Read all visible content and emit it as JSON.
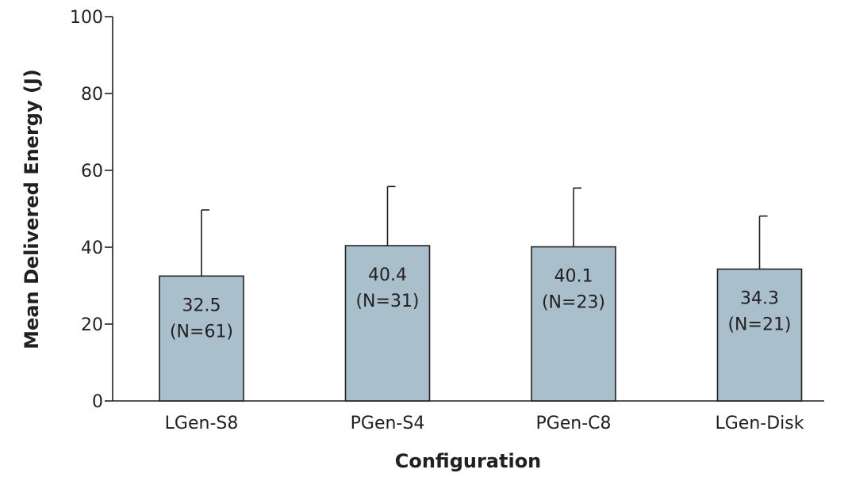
{
  "chart_data": {
    "type": "bar",
    "ylabel": "Mean Delivered Energy (J)",
    "xlabel": "Configuration",
    "ylim": [
      0,
      100
    ],
    "yticks": [
      0,
      20,
      40,
      60,
      80,
      100
    ],
    "grid": false,
    "colors": {
      "bar_fill": "#a9bfcc",
      "ink": "#231f20"
    },
    "categories": [
      "LGen-S8",
      "PGen-S4",
      "PGen-C8",
      "LGen-Disk"
    ],
    "values": [
      32.5,
      40.4,
      40.1,
      34.3
    ],
    "error_upper": [
      49.7,
      55.8,
      55.4,
      48.1
    ],
    "value_labels": [
      "32.5",
      "40.4",
      "40.1",
      "34.3"
    ],
    "n_labels": [
      "(N=61)",
      "(N=31)",
      "(N=23)",
      "(N=21)"
    ]
  }
}
